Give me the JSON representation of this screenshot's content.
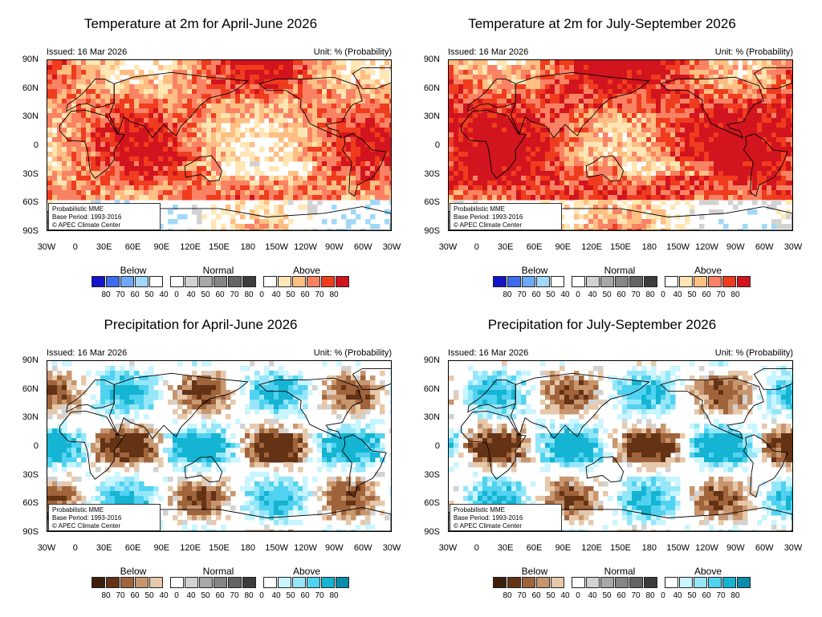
{
  "panels": [
    {
      "title": "Temperature at 2m for April-June 2026",
      "issued": "Issued: 16 Mar 2026",
      "unit": "Unit: % (Probability)",
      "info": [
        "Probabilistic MME",
        "Base Period: 1993-2016",
        "© APEC Climate Center"
      ],
      "variable": "temperature",
      "dominant": "above"
    },
    {
      "title": "Temperature at 2m for July-September 2026",
      "issued": "Issued: 16 Mar 2026",
      "unit": "Unit: % (Probability)",
      "info": [
        "Probabilistic MME",
        "Base Period: 1993-2016",
        "© APEC Climate Center"
      ],
      "variable": "temperature",
      "dominant": "above"
    },
    {
      "title": "Precipitation for April-June 2026",
      "issued": "Issued: 16 Mar 2026",
      "unit": "Unit: % (Probability)",
      "info": [
        "Probabilistic MME",
        "Base Period: 1993-2016",
        "© APEC Climate Center"
      ],
      "variable": "precipitation",
      "dominant": "mixed"
    },
    {
      "title": "Precipitation for July-September 2026",
      "issued": "Issued: 16 Mar 2026",
      "unit": "Unit: % (Probability)",
      "info": [
        "Probabilistic MME",
        "Base Period: 1993-2016",
        "© APEC Climate Center"
      ],
      "variable": "precipitation",
      "dominant": "mixed"
    }
  ],
  "axes": {
    "lat_labels": [
      "90N",
      "60N",
      "30N",
      "0",
      "30S",
      "60S",
      "90S"
    ],
    "lon_labels": [
      "30W",
      "0",
      "30E",
      "60E",
      "90E",
      "120E",
      "150E",
      "180",
      "150W",
      "120W",
      "90W",
      "60W",
      "30W"
    ]
  },
  "legend": {
    "groups": [
      "Below",
      "Normal",
      "Above"
    ],
    "ticks": [
      "80",
      "70",
      "60",
      "50",
      "40",
      "0",
      "40",
      "50",
      "60",
      "70",
      "80",
      "0",
      "40",
      "50",
      "60",
      "70",
      "80"
    ],
    "temperature": {
      "below": [
        "#1414c8",
        "#3c6cf0",
        "#6ea8f8",
        "#a0d8fa",
        "#ffffff"
      ],
      "normal": [
        "#ffffff",
        "#d2d2d2",
        "#a8a8a8",
        "#868686",
        "#646464",
        "#3c3c3c"
      ],
      "above": [
        "#ffffff",
        "#ffe6b4",
        "#ffbe82",
        "#fa8264",
        "#f03c1e",
        "#d2141e"
      ]
    },
    "precipitation": {
      "below": [
        "#3c1e0a",
        "#643214",
        "#a0643c",
        "#c8966e",
        "#e6c8aa"
      ],
      "normal": [
        "#ffffff",
        "#d2d2d2",
        "#a8a8a8",
        "#868686",
        "#646464",
        "#3c3c3c"
      ],
      "above": [
        "#ffffff",
        "#c8f5ff",
        "#96e6fa",
        "#50d2f0",
        "#14b4d2",
        "#0a8caa"
      ]
    }
  }
}
